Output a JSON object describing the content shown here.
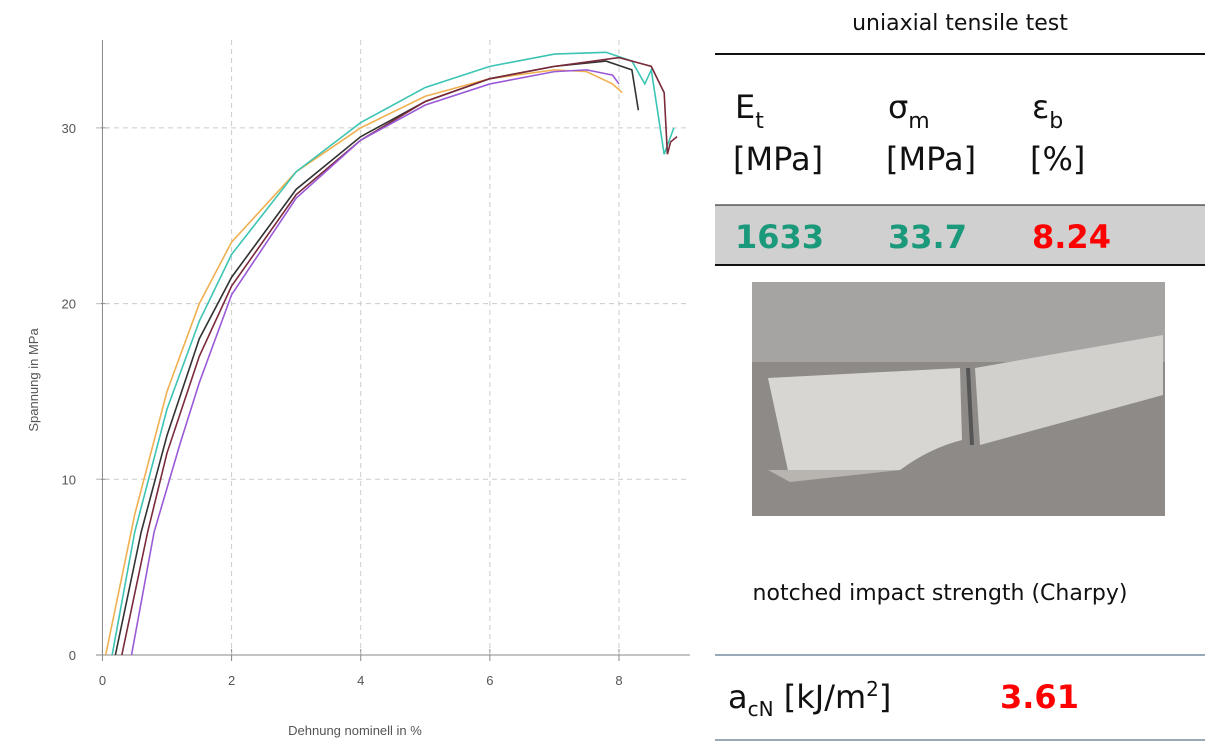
{
  "chart_data": {
    "type": "line",
    "xlabel": "Dehnung nominell in %",
    "ylabel": "Spannung in MPa",
    "xlim": [
      -0.1,
      9.1
    ],
    "ylim": [
      0,
      35
    ],
    "xticks": [
      0,
      2,
      4,
      6,
      8
    ],
    "yticks": [
      0,
      10,
      20,
      30
    ],
    "grid": true,
    "series": [
      {
        "color": "#f0b050",
        "x": [
          0.05,
          0.5,
          1,
          1.5,
          2,
          3,
          4,
          5,
          6,
          7,
          7.5,
          7.9,
          8.05
        ],
        "values": [
          0,
          8,
          15,
          20,
          23.5,
          27.5,
          30,
          31.8,
          32.8,
          33.3,
          33.2,
          32.5,
          32
        ]
      },
      {
        "color": "#3cc4b4",
        "x": [
          0.15,
          0.5,
          1,
          1.5,
          2,
          3,
          4,
          5,
          6,
          7,
          7.8,
          8.2,
          8.4,
          8.5,
          8.7,
          8.85
        ],
        "values": [
          0,
          7,
          14,
          19,
          22.8,
          27.5,
          30.3,
          32.3,
          33.5,
          34.2,
          34.3,
          33.8,
          32.5,
          33.3,
          28.5,
          30
        ]
      },
      {
        "color": "#333333",
        "x": [
          0.2,
          0.6,
          1,
          1.5,
          2,
          3,
          4,
          5,
          6,
          7,
          7.8,
          8.2,
          8.3
        ],
        "values": [
          0,
          7,
          12.5,
          18,
          21.5,
          26.5,
          29.5,
          31.5,
          32.8,
          33.5,
          33.8,
          33.3,
          31
        ]
      },
      {
        "color": "#7a2a3a",
        "x": [
          0.3,
          0.7,
          1,
          1.5,
          2,
          3,
          4,
          5,
          6,
          7,
          8,
          8.5,
          8.7,
          8.75,
          8.8,
          8.9
        ],
        "values": [
          0,
          7,
          11.5,
          17,
          21,
          26.2,
          29.3,
          31.5,
          32.8,
          33.5,
          34,
          33.5,
          32,
          28.5,
          29.2,
          29.5
        ]
      },
      {
        "color": "#9a5ad8",
        "x": [
          0.45,
          0.8,
          1.2,
          1.5,
          2,
          3,
          4,
          5,
          6,
          7,
          7.5,
          7.9,
          8
        ],
        "values": [
          0,
          7,
          12,
          15.5,
          20.5,
          26,
          29.3,
          31.3,
          32.5,
          33.2,
          33.3,
          33,
          32.5
        ]
      }
    ]
  },
  "tensile_table": {
    "title": "uniaxial tensile test",
    "headers": [
      {
        "symbol": "E",
        "subscript": "t",
        "unit": "[MPa]"
      },
      {
        "symbol": "σ",
        "subscript": "m",
        "unit": "[MPa]"
      },
      {
        "symbol": "ε",
        "subscript": "b",
        "unit": "[%]"
      }
    ],
    "row": [
      1633,
      33.7,
      8.24
    ]
  },
  "impact_table": {
    "title": "notched impact strength (Charpy)",
    "label": {
      "symbol": "a",
      "subscript": "cN",
      "unit": " [kJ/m",
      "exponent": "2",
      "close": "]"
    },
    "value": 3.61
  }
}
